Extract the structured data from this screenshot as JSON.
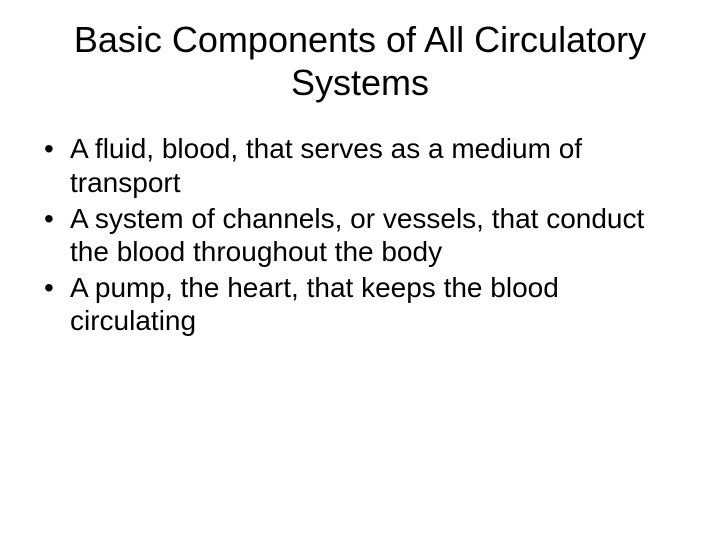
{
  "slide": {
    "title": "Basic Components of All Circulatory Systems",
    "bullets": [
      "A fluid, blood, that serves as a medium of transport",
      "A system of channels, or vessels, that conduct the blood throughout the body",
      "A pump, the heart, that keeps the blood circulating"
    ],
    "background_color": "#ffffff",
    "text_color": "#000000",
    "title_fontsize": 36,
    "body_fontsize": 28,
    "font_family": "Arial"
  }
}
